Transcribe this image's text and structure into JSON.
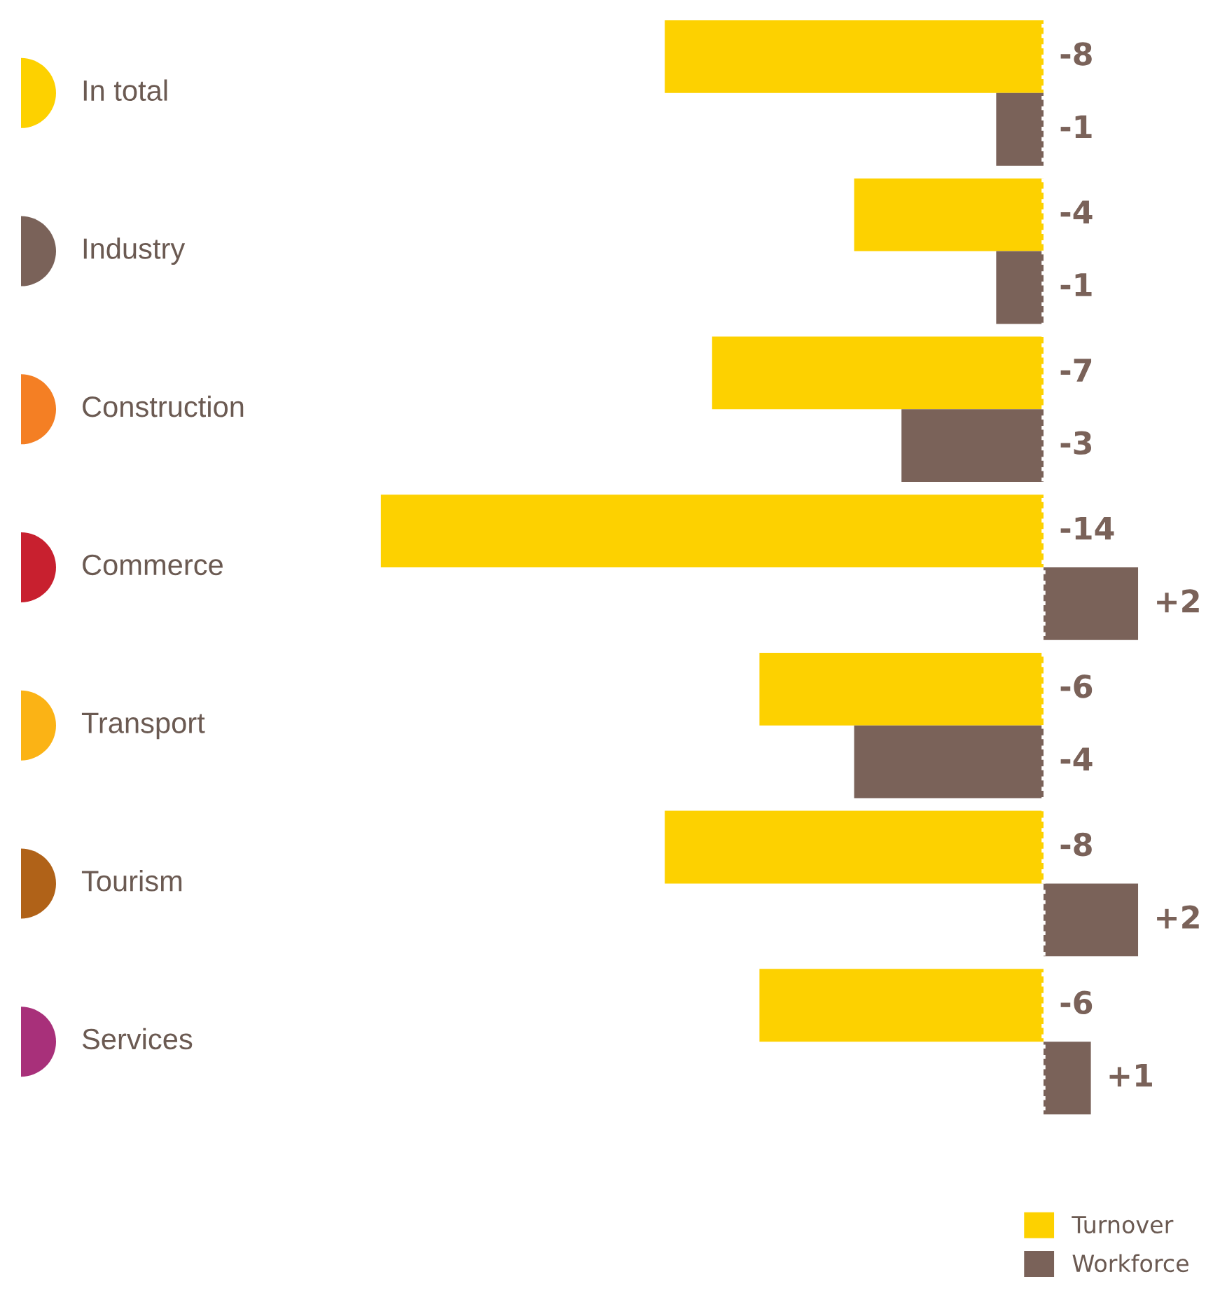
{
  "chart_data": {
    "type": "bar",
    "orientation": "horizontal",
    "categories": [
      "In total",
      "Industry",
      "Construction",
      "Commerce",
      "Transport",
      "Tourism",
      "Services"
    ],
    "series": [
      {
        "name": "Turnover",
        "color": "#fdd100",
        "values": [
          -8,
          -4,
          -7,
          -14,
          -6,
          -8,
          -6
        ],
        "value_labels": [
          "-8",
          "-4",
          "-7",
          "-14",
          "-6",
          "-8",
          "-6"
        ]
      },
      {
        "name": "Workforce",
        "color": "#7a6259",
        "values": [
          -1,
          -1,
          -3,
          2,
          -4,
          2,
          1
        ],
        "value_labels": [
          "-1",
          "-1",
          "-3",
          "+2",
          "-4",
          "+2",
          "+1"
        ]
      }
    ],
    "ref_lines": [
      {
        "axis": "x",
        "value": 0,
        "color": "#ffffff",
        "line_style": "dotted"
      }
    ],
    "legend": "bottom right"
  }
}
